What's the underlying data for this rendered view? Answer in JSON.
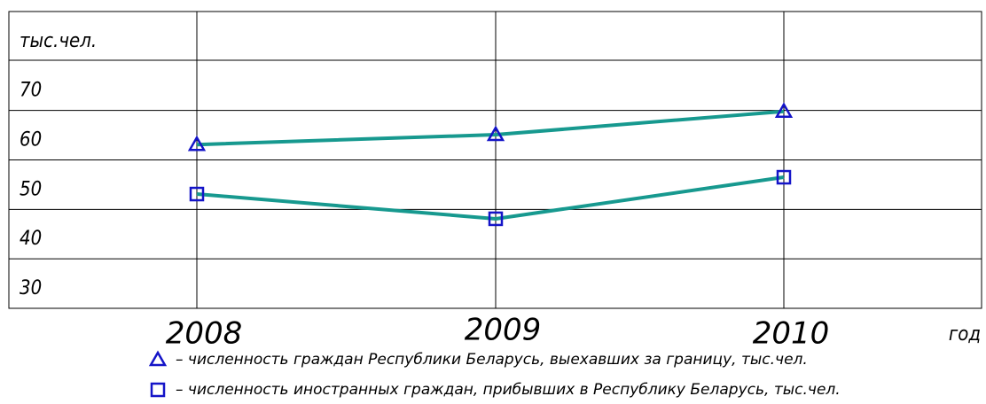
{
  "chart_data": {
    "type": "line",
    "ylabel": "тыс.чел.",
    "xlabel": "год",
    "categories": [
      "2008",
      "2009",
      "2010"
    ],
    "series": [
      {
        "name": "– численность граждан Республики Беларусь, выехавших за границу, тыс.чел.",
        "color": "#17998f",
        "marker": "triangle",
        "marker_color": "#1414c8",
        "values": [
          63.1,
          65.1,
          69.8
        ]
      },
      {
        "name": "– численность иностранных граждан, прибывших в Республику Беларусь, тыс.чел.",
        "color": "#17998f",
        "marker": "square",
        "marker_color": "#1414c8",
        "values": [
          53.1,
          48.1,
          56.5
        ]
      }
    ],
    "ylim": [
      30,
      90
    ],
    "yticks": [
      30,
      40,
      50,
      60,
      70
    ],
    "grid": true
  }
}
